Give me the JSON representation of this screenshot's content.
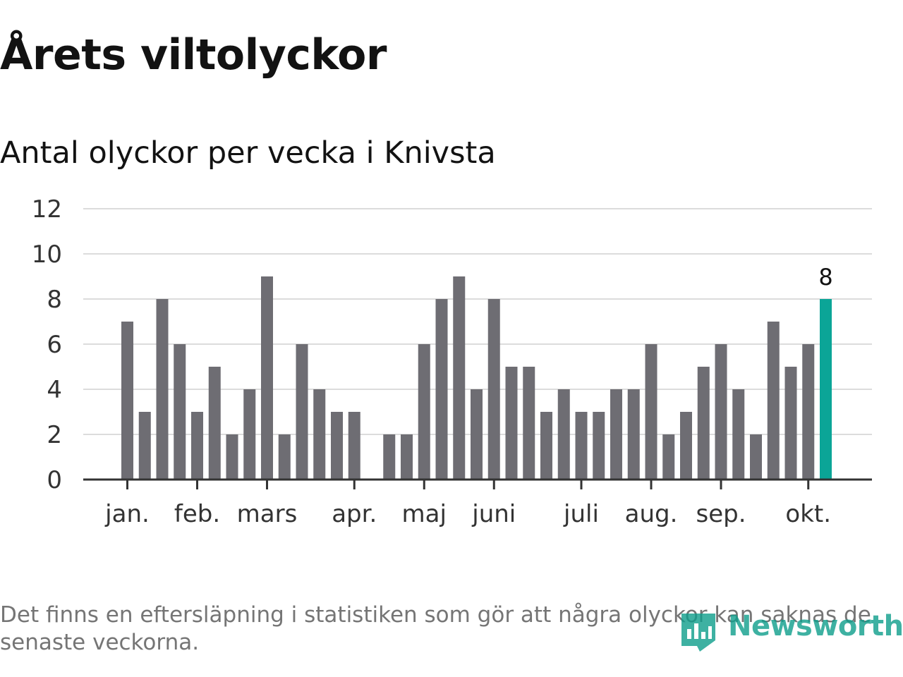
{
  "title": "Årets viltolyckor",
  "subtitle": "Antal olyckor per vecka i Knivsta",
  "footnote": "Det finns en eftersläpning i statistiken som gör att några olyckor kan saknas de senaste veckorna.",
  "brand": "Newsworthy",
  "colors": {
    "bar": "#6e6d73",
    "highlight": "#0ba597",
    "grid": "#dcdcdc",
    "axis": "#333333",
    "text": "#121212",
    "muted": "#757575",
    "brand": "#0f9e8c"
  },
  "chart_data": {
    "type": "bar",
    "title": "Antal olyckor per vecka i Knivsta",
    "xlabel": "",
    "ylabel": "",
    "ylim": [
      0,
      12
    ],
    "y_ticks": [
      0,
      2,
      4,
      6,
      8,
      10,
      12
    ],
    "grid": true,
    "values": [
      7,
      3,
      8,
      6,
      3,
      5,
      2,
      4,
      9,
      2,
      6,
      4,
      3,
      3,
      0,
      2,
      2,
      6,
      8,
      9,
      4,
      8,
      5,
      5,
      3,
      4,
      3,
      3,
      4,
      4,
      6,
      2,
      3,
      5,
      6,
      4,
      2,
      7,
      5,
      6,
      8
    ],
    "month_labels": [
      {
        "label": "jan.",
        "week_index": 0
      },
      {
        "label": "feb.",
        "week_index": 4
      },
      {
        "label": "mars",
        "week_index": 8
      },
      {
        "label": "apr.",
        "week_index": 13
      },
      {
        "label": "maj",
        "week_index": 17
      },
      {
        "label": "juni",
        "week_index": 21
      },
      {
        "label": "juli",
        "week_index": 26
      },
      {
        "label": "aug.",
        "week_index": 30
      },
      {
        "label": "sep.",
        "week_index": 34
      },
      {
        "label": "okt.",
        "week_index": 39
      }
    ],
    "highlight_index": 40,
    "highlight_label": "8"
  }
}
